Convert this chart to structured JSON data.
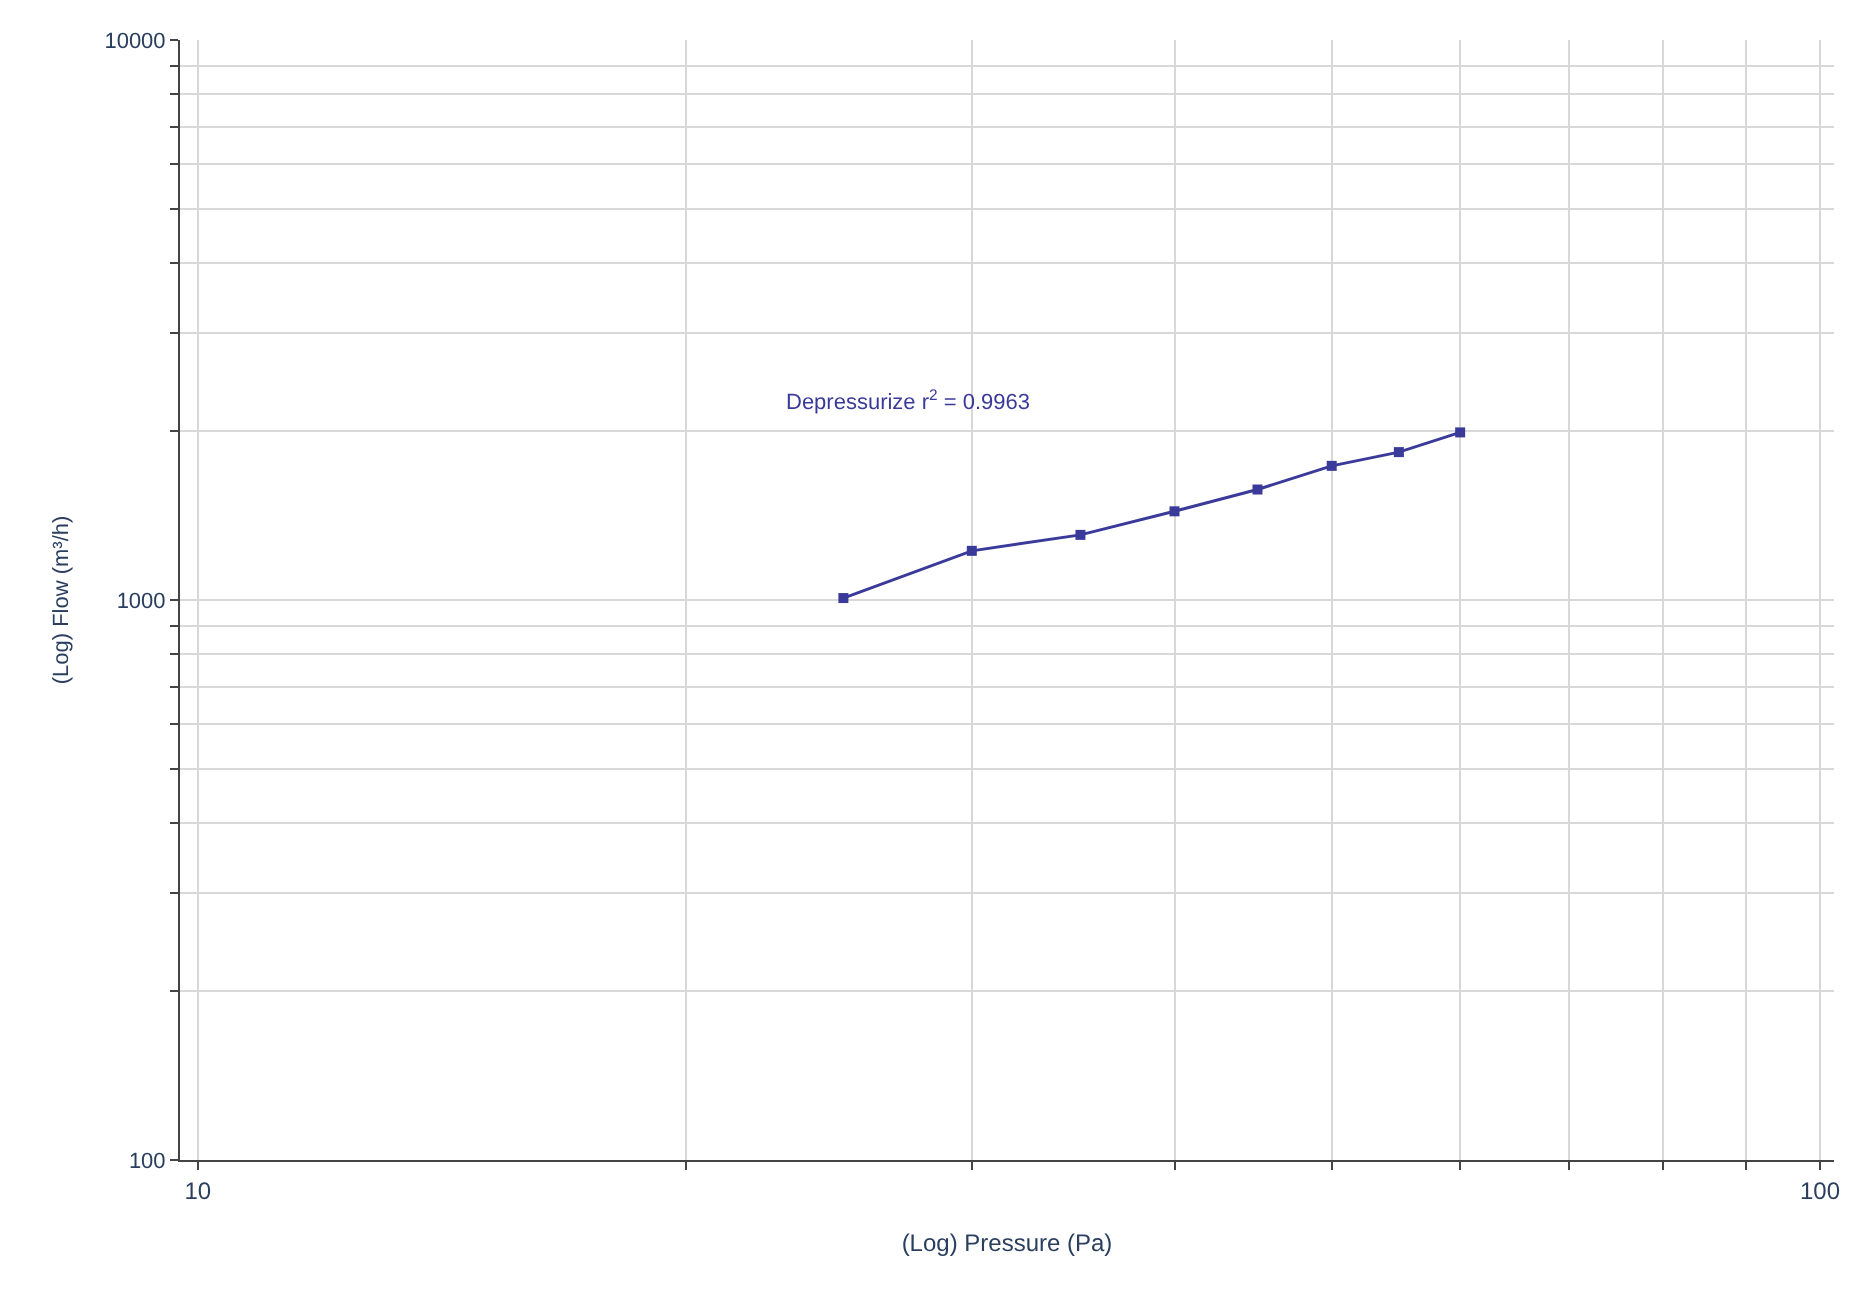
{
  "chart_data": {
    "type": "line",
    "xlabel": "(Log) Pressure (Pa)",
    "ylabel": "(Log) Flow (m³/h)",
    "x": [
      25,
      30,
      35,
      40,
      45,
      50,
      55,
      60
    ],
    "series": [
      {
        "color": "#3a3a9a",
        "values": [
          1008,
          1224,
          1307,
          1440,
          1575,
          1736,
          1837,
          1992
        ]
      }
    ],
    "annotations": [
      "Depressurize r$^{2}$ = 0.9963"
    ],
    "log": "xy",
    "grid": true,
    "marker": "square",
    "line_style": "solid",
    "xlim": [
      9.75,
      102
    ],
    "ylim": [
      100,
      10000
    ],
    "xticks": [
      10,
      {
        "value": 20,
        "label": null
      },
      {
        "value": 30,
        "label": null
      },
      {
        "value": 40,
        "label": null
      },
      {
        "value": 50,
        "label": null
      },
      {
        "value": 60,
        "label": null
      },
      {
        "value": 70,
        "label": null
      },
      {
        "value": 80,
        "label": null
      },
      {
        "value": 90,
        "label": null
      },
      100
    ],
    "yticks": [
      100,
      {
        "value": 200,
        "label": null
      },
      {
        "value": 300,
        "label": null
      },
      {
        "value": 400,
        "label": null
      },
      {
        "value": 500,
        "label": null
      },
      {
        "value": 600,
        "label": null
      },
      {
        "value": 700,
        "label": null
      },
      {
        "value": 800,
        "label": null
      },
      {
        "value": 900,
        "label": null
      },
      1000,
      {
        "value": 2000,
        "label": null
      },
      {
        "value": 3000,
        "label": null
      },
      {
        "value": 4000,
        "label": null
      },
      {
        "value": 5000,
        "label": null
      },
      {
        "value": 6000,
        "label": null
      },
      {
        "value": 7000,
        "label": null
      },
      {
        "value": 8000,
        "label": null
      },
      {
        "value": 9000,
        "label": null
      },
      10000
    ]
  }
}
